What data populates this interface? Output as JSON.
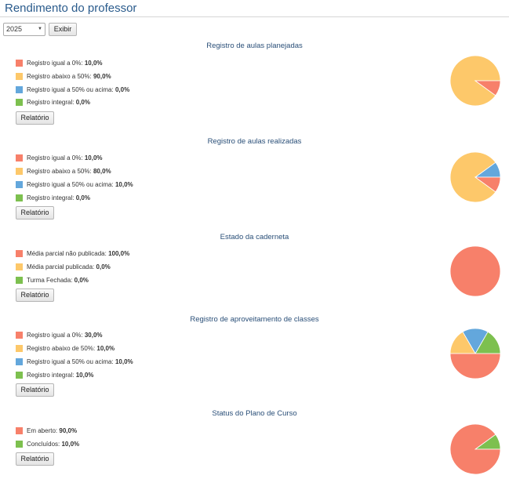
{
  "page": {
    "title": "Rendimento do professor"
  },
  "filter": {
    "year": "2025",
    "show_label": "Exibir"
  },
  "colors": {
    "red": "#f7806a",
    "yellow": "#fdc86a",
    "blue": "#63a7dc",
    "green": "#7dc04f"
  },
  "sections": [
    {
      "title": "Registro de aulas planejadas",
      "items": [
        {
          "label": "Registro igual a 0%:",
          "value": "10,0%",
          "color": "red",
          "pct": 10
        },
        {
          "label": "Registro abaixo a 50%:",
          "value": "90,0%",
          "color": "yellow",
          "pct": 90
        },
        {
          "label": "Registro igual a 50% ou acima:",
          "value": "0,0%",
          "color": "blue",
          "pct": 0
        },
        {
          "label": "Registro integral:",
          "value": "0,0%",
          "color": "green",
          "pct": 0
        }
      ],
      "button": "Relatório"
    },
    {
      "title": "Registro de aulas realizadas",
      "items": [
        {
          "label": "Registro igual a 0%:",
          "value": "10,0%",
          "color": "red",
          "pct": 10
        },
        {
          "label": "Registro abaixo a 50%:",
          "value": "80,0%",
          "color": "yellow",
          "pct": 80
        },
        {
          "label": "Registro igual a 50% ou acima:",
          "value": "10,0%",
          "color": "blue",
          "pct": 10
        },
        {
          "label": "Registro integral:",
          "value": "0,0%",
          "color": "green",
          "pct": 0
        }
      ],
      "button": "Relatório"
    },
    {
      "title": "Estado da caderneta",
      "items": [
        {
          "label": "Média parcial não publicada:",
          "value": "100,0%",
          "color": "red",
          "pct": 100
        },
        {
          "label": "Média parcial publicada:",
          "value": "0,0%",
          "color": "yellow",
          "pct": 0
        },
        {
          "label": "Turma Fechada:",
          "value": "0,0%",
          "color": "green",
          "pct": 0
        }
      ],
      "button": "Relatório"
    },
    {
      "title": "Registro de aproveitamento de classes",
      "items": [
        {
          "label": "Registro igual a 0%:",
          "value": "30,0%",
          "color": "red",
          "pct": 50
        },
        {
          "label": "Registro abaixo de 50%:",
          "value": "10,0%",
          "color": "yellow",
          "pct": 16.67
        },
        {
          "label": "Registro igual a 50% ou acima:",
          "value": "10,0%",
          "color": "blue",
          "pct": 16.67
        },
        {
          "label": "Registro integral:",
          "value": "10,0%",
          "color": "green",
          "pct": 16.67
        }
      ],
      "button": "Relatório"
    },
    {
      "title": "Status do Plano de Curso",
      "items": [
        {
          "label": "Em aberto:",
          "value": "90,0%",
          "color": "red",
          "pct": 90
        },
        {
          "label": "Concluídos:",
          "value": "10,0%",
          "color": "green",
          "pct": 10
        }
      ],
      "button": "Relatório"
    }
  ]
}
